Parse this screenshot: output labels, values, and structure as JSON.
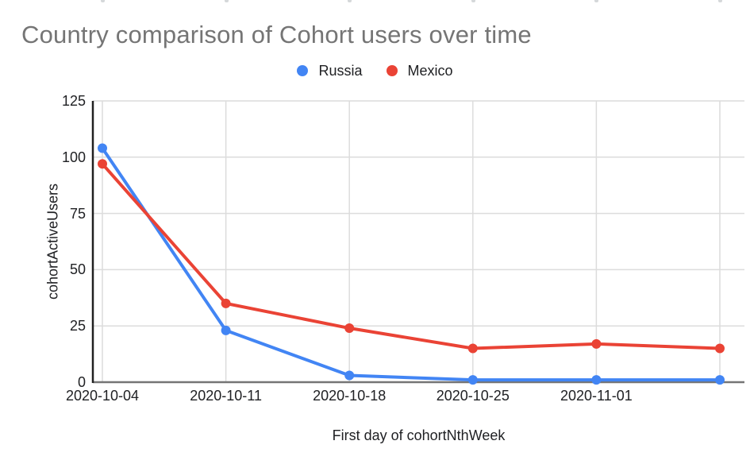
{
  "title": "Country comparison of Cohort users over time",
  "chart_data": {
    "type": "line",
    "title": "Country comparison of Cohort users over time",
    "xlabel": "First day of cohortNthWeek",
    "ylabel": "cohortActiveUsers",
    "categories": [
      "2020-10-04",
      "2020-10-11",
      "2020-10-18",
      "2020-10-25",
      "2020-11-01",
      ""
    ],
    "series": [
      {
        "name": "Russia",
        "color": "#4285F4",
        "values": [
          104,
          23,
          3,
          1,
          1,
          1
        ]
      },
      {
        "name": "Mexico",
        "color": "#EA4335",
        "values": [
          97,
          35,
          24,
          15,
          17,
          15
        ]
      }
    ],
    "ylim": [
      0,
      125
    ],
    "yticks": [
      0,
      25,
      50,
      75,
      100,
      125
    ],
    "grid": true,
    "legend_position": "top",
    "marker": "circle"
  },
  "style_colors": {
    "title_gray": "#757575",
    "tick_text": "#202124",
    "gridline": "#dcdcdc",
    "baseline": "#757575",
    "y_axis_line": "#212121"
  }
}
